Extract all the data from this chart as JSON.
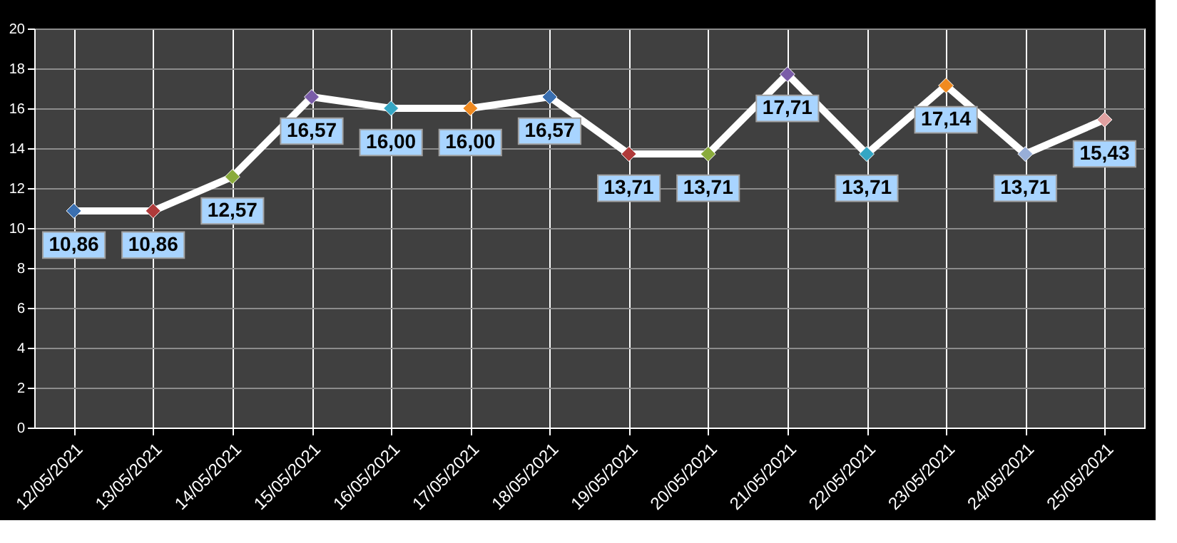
{
  "chart_data": {
    "type": "line",
    "categories": [
      "12/05/2021",
      "13/05/2021",
      "14/05/2021",
      "15/05/2021",
      "16/05/2021",
      "17/05/2021",
      "18/05/2021",
      "19/05/2021",
      "20/05/2021",
      "21/05/2021",
      "22/05/2021",
      "23/05/2021",
      "24/05/2021",
      "25/05/2021"
    ],
    "series": [
      {
        "color": "#ffffff",
        "values": [
          10.86,
          10.86,
          12.57,
          16.57,
          16.0,
          16.0,
          16.57,
          13.71,
          13.71,
          17.71,
          13.71,
          17.14,
          13.71,
          15.43
        ],
        "value_labels": [
          "10,86",
          "10,86",
          "12,57",
          "16,57",
          "16,00",
          "16,00",
          "16,57",
          "13,71",
          "13,71",
          "17,71",
          "13,71",
          "17,14",
          "13,71",
          "15,43"
        ],
        "colors": [
          "#3a6fb0",
          "#b03a3a",
          "#8aab3c",
          "#7a5ca8",
          "#34a6c4",
          "#f08a20",
          "#3a6fb0",
          "#b03a3a",
          "#8aab3c",
          "#7a5ca8",
          "#34a6c4",
          "#f08a20",
          "#98aed8",
          "#e0a0a0"
        ]
      }
    ],
    "ylim": [
      0,
      20
    ],
    "yticks": [
      0,
      2,
      4,
      6,
      8,
      10,
      12,
      14,
      16,
      18,
      20
    ],
    "grid": true,
    "marker": "diamond"
  }
}
